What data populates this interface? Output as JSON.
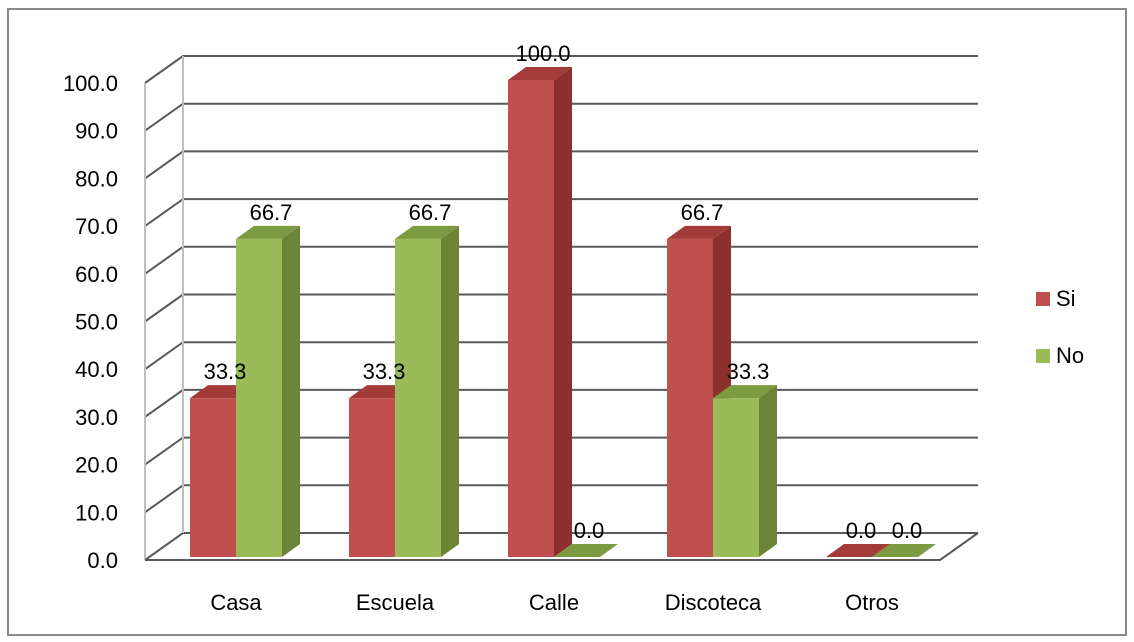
{
  "chart_data": {
    "type": "bar",
    "categories": [
      "Casa",
      "Escuela",
      "Calle",
      "Discoteca",
      "Otros"
    ],
    "series": [
      {
        "name": "Si",
        "values": [
          33.3,
          33.3,
          100.0,
          66.7,
          0.0
        ],
        "color": "#c0504d",
        "side_color": "#8c2f2d",
        "top_color": "#a33b38"
      },
      {
        "name": "No",
        "values": [
          66.7,
          66.7,
          0.0,
          33.3,
          0.0
        ],
        "color": "#9bbb59",
        "side_color": "#6b8436",
        "top_color": "#7c9a3f"
      }
    ],
    "data_labels": [
      [
        "33.3",
        "33.3",
        "100.0",
        "66.7",
        "0.0"
      ],
      [
        "66.7",
        "66.7",
        "0.0",
        "33.3",
        "0.0"
      ]
    ],
    "ylim": [
      0,
      100
    ],
    "ytick_labels": [
      "0.0",
      "10.0",
      "20.0",
      "30.0",
      "40.0",
      "50.0",
      "60.0",
      "70.0",
      "80.0",
      "90.0",
      "100.0"
    ],
    "gridline_color": "#595959",
    "grid": true,
    "legend_position": "right",
    "style": "3d-clustered-column",
    "title": "",
    "xlabel": "",
    "ylabel": ""
  }
}
